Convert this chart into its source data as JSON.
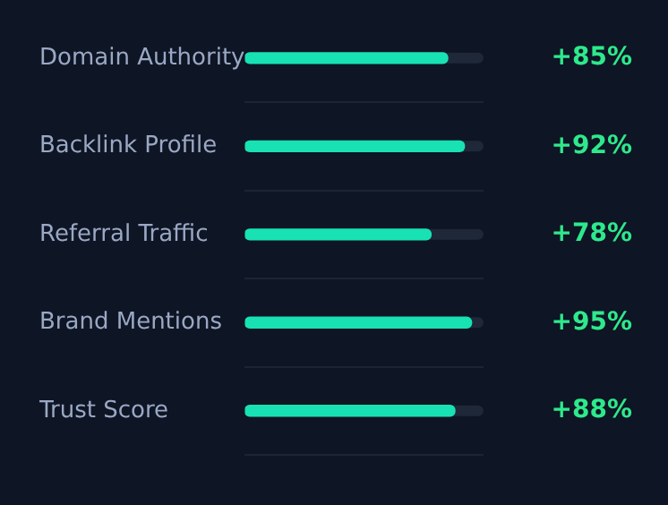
{
  "chart_data": {
    "type": "bar",
    "orientation": "horizontal",
    "categories": [
      "Domain Authority",
      "Backlink Profile",
      "Referral Traffic",
      "Brand Mentions",
      "Trust Score"
    ],
    "values": [
      85,
      92,
      78,
      95,
      88
    ],
    "value_labels": [
      "+85%",
      "+92%",
      "+78%",
      "+95%",
      "+88%"
    ],
    "color": "#18e2b4",
    "xlim": [
      0,
      100
    ],
    "grid": "y",
    "legend": false
  }
}
